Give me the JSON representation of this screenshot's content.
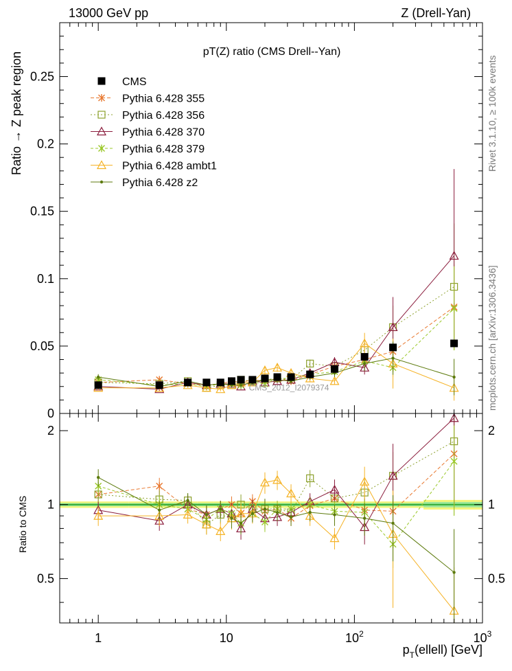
{
  "header": {
    "left": "13000 GeV pp",
    "right": "Z (Drell-Yan)",
    "side_top": "Rivet 3.1.10, ≥ 100k events",
    "side_bottom": "mcplots.cern.ch [arXiv:1306.3436]"
  },
  "chart_data": {
    "type": "scatter",
    "title": "pT(Z) ratio (CMS Drell--Yan)",
    "watermark": "CMS_2012_I2079374",
    "xlabel": "p_T(ellell) [GeV]",
    "ylabel": "Ratio → Z peak region",
    "ratio_ylabel": "Ratio to CMS",
    "xscale": "log",
    "xlim": [
      0.5,
      1000
    ],
    "ylim": [
      0,
      0.29
    ],
    "ratio_ylim": [
      0.33,
      2.35
    ],
    "x_ticks": [
      {
        "v": 1,
        "label": "1"
      },
      {
        "v": 10,
        "label": "10"
      },
      {
        "v": 100,
        "label": "10^2"
      },
      {
        "v": 1000,
        "label": "10^3"
      }
    ],
    "y_ticks": [
      {
        "v": 0,
        "label": "0"
      },
      {
        "v": 0.05,
        "label": "0.05"
      },
      {
        "v": 0.1,
        "label": "0.1"
      },
      {
        "v": 0.15,
        "label": "0.15"
      },
      {
        "v": 0.2,
        "label": "0.2"
      },
      {
        "v": 0.25,
        "label": "0.25"
      }
    ],
    "ratio_ticks": [
      {
        "v": 0.5,
        "label": "0.5"
      },
      {
        "v": 1,
        "label": "1"
      },
      {
        "v": 2,
        "label": "2"
      }
    ],
    "x": [
      1,
      3,
      5,
      7,
      9,
      11,
      13,
      16,
      20,
      25,
      32,
      45,
      70,
      120,
      200,
      600
    ],
    "data": {
      "name": "CMS",
      "values": [
        0.021,
        0.021,
        0.023,
        0.023,
        0.023,
        0.024,
        0.025,
        0.025,
        0.026,
        0.027,
        0.027,
        0.029,
        0.033,
        0.042,
        0.049,
        0.052
      ],
      "band_inner": [
        0.03,
        0.03,
        0.03,
        0.03,
        0.03,
        0.03,
        0.03,
        0.03,
        0.03,
        0.03,
        0.03,
        0.03,
        0.03,
        0.03,
        0.03,
        0.05
      ],
      "band_outer": [
        0.06,
        0.06,
        0.06,
        0.06,
        0.06,
        0.06,
        0.06,
        0.06,
        0.06,
        0.06,
        0.06,
        0.06,
        0.06,
        0.06,
        0.06,
        0.09
      ]
    },
    "series": [
      {
        "name": "Pythia 6.428 355",
        "color": "#e8772e",
        "dash": "5,3",
        "marker": "star",
        "values": [
          0.023,
          0.025,
          0.022,
          0.021,
          0.022,
          0.024,
          0.023,
          0.025,
          0.024,
          0.026,
          0.024,
          0.029,
          0.035,
          0.04,
          0.046,
          0.079
        ],
        "ratio": [
          1.1,
          1.19,
          0.96,
          0.91,
          0.96,
          1.0,
          0.92,
          1.03,
          0.94,
          0.96,
          0.88,
          0.99,
          1.06,
          0.95,
          0.94,
          1.61
        ],
        "err": [
          0.07,
          0.08,
          0.06,
          0.08,
          0.07,
          0.08,
          0.1,
          0.07,
          0.1,
          0.07,
          0.07,
          0.07,
          0.08,
          0.12,
          0.18,
          0.4
        ]
      },
      {
        "name": "Pythia 6.428 356",
        "color": "#8ca02c",
        "dash": "2,3",
        "marker": "square",
        "values": [
          0.023,
          0.022,
          0.024,
          0.019,
          0.021,
          0.021,
          0.025,
          0.024,
          0.025,
          0.026,
          0.025,
          0.037,
          0.035,
          0.047,
          0.064,
          0.094
        ],
        "ratio": [
          1.1,
          1.05,
          1.04,
          0.83,
          0.91,
          0.88,
          1.0,
          0.96,
          0.96,
          0.96,
          0.93,
          1.28,
          1.06,
          1.12,
          1.31,
          1.81
        ],
        "err": [
          0.08,
          0.09,
          0.07,
          0.09,
          0.08,
          0.09,
          0.1,
          0.08,
          0.1,
          0.08,
          0.08,
          0.08,
          0.1,
          0.15,
          0.25,
          0.5
        ]
      },
      {
        "name": "Pythia 6.428 370",
        "color": "#8a1c3c",
        "dash": "",
        "marker": "triangle",
        "values": [
          0.02,
          0.018,
          0.023,
          0.021,
          0.022,
          0.022,
          0.02,
          0.024,
          0.023,
          0.024,
          0.025,
          0.03,
          0.038,
          0.034,
          0.064,
          0.117
        ],
        "ratio": [
          0.95,
          0.86,
          1.0,
          0.91,
          0.96,
          0.92,
          0.8,
          0.96,
          0.88,
          0.89,
          0.93,
          1.03,
          1.15,
          0.81,
          1.31,
          2.25
        ],
        "err": [
          0.08,
          0.09,
          0.09,
          0.09,
          0.08,
          0.1,
          0.1,
          0.09,
          0.1,
          0.08,
          0.08,
          0.08,
          0.1,
          0.15,
          0.35,
          0.55
        ]
      },
      {
        "name": "Pythia 6.428 379",
        "color": "#9ac828",
        "dash": "4,3",
        "marker": "star",
        "values": [
          0.025,
          0.021,
          0.022,
          0.02,
          0.022,
          0.022,
          0.021,
          0.023,
          0.022,
          0.026,
          0.026,
          0.029,
          0.031,
          0.039,
          0.034,
          0.078
        ],
        "ratio": [
          1.19,
          1.0,
          0.96,
          0.87,
          0.96,
          0.92,
          0.84,
          0.92,
          0.85,
          0.96,
          0.96,
          1.0,
          0.94,
          0.93,
          0.69,
          1.5
        ],
        "err": [
          0.07,
          0.08,
          0.07,
          0.08,
          0.07,
          0.08,
          0.09,
          0.07,
          0.09,
          0.07,
          0.07,
          0.07,
          0.09,
          0.12,
          0.2,
          0.4
        ]
      },
      {
        "name": "Pythia 6.428 ambt1",
        "color": "#f5b224",
        "dash": "",
        "marker": "triangle",
        "values": [
          0.019,
          0.019,
          0.021,
          0.019,
          0.018,
          0.021,
          0.023,
          0.023,
          0.032,
          0.034,
          0.03,
          0.026,
          0.024,
          0.052,
          0.037,
          0.019
        ],
        "ratio": [
          0.9,
          0.9,
          0.91,
          0.83,
          0.78,
          0.88,
          0.92,
          0.92,
          1.23,
          1.26,
          1.11,
          0.9,
          0.73,
          1.24,
          0.76,
          0.37
        ],
        "err": [
          0.09,
          0.09,
          0.08,
          0.09,
          0.09,
          0.1,
          0.1,
          0.09,
          0.1,
          0.09,
          0.09,
          0.09,
          0.1,
          0.15,
          0.5,
          0.5
        ]
      },
      {
        "name": "Pythia 6.428 z2",
        "color": "#5c7a0c",
        "dash": "",
        "marker": "dot",
        "values": [
          0.027,
          0.02,
          0.024,
          0.021,
          0.022,
          0.021,
          0.021,
          0.023,
          0.025,
          0.025,
          0.024,
          0.027,
          0.03,
          0.037,
          0.041,
          0.027
        ],
        "ratio": [
          1.29,
          0.95,
          1.04,
          0.91,
          0.96,
          0.88,
          0.84,
          0.92,
          0.96,
          0.93,
          0.89,
          0.93,
          0.91,
          0.88,
          0.84,
          0.53
        ],
        "err": [
          0.08,
          0.09,
          0.07,
          0.09,
          0.08,
          0.09,
          0.1,
          0.08,
          0.1,
          0.08,
          0.08,
          0.08,
          0.1,
          0.15,
          0.3,
          0.5
        ]
      }
    ]
  }
}
